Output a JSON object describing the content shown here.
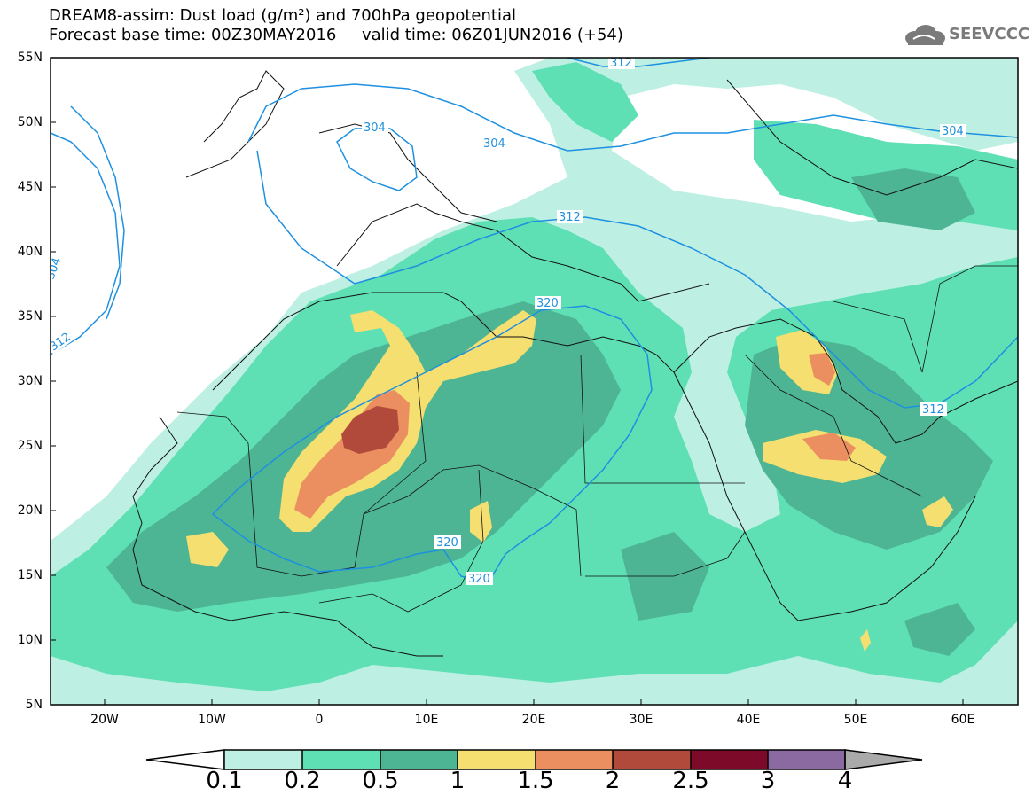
{
  "header": {
    "line1": "DREAM8-assim: Dust load (g/m²) and 700hPa geopotential",
    "line2": "Forecast base time: 00Z30MAY2016     valid time: 06Z01JUN2016 (+54)"
  },
  "logo": {
    "text": "SEEVCCC",
    "icon": "cloud-logo-icon"
  },
  "map": {
    "lat_labels": [
      "55N",
      "50N",
      "45N",
      "40N",
      "35N",
      "30N",
      "25N",
      "20N",
      "15N",
      "10N",
      "5N"
    ],
    "lon_labels": [
      "20W",
      "10W",
      "0",
      "10E",
      "20E",
      "30E",
      "40E",
      "50E",
      "60E"
    ],
    "contour_labels": [
      "312",
      "304",
      "304",
      "304",
      "312",
      "320",
      "312",
      "320",
      "320",
      "304",
      "312"
    ],
    "extent": {
      "lon": [
        -25,
        65
      ],
      "lat": [
        5,
        55
      ]
    }
  },
  "colorbar": {
    "labels": [
      "0.1",
      "0.2",
      "0.5",
      "1",
      "1.5",
      "2",
      "2.5",
      "3",
      "4"
    ],
    "colors": [
      "#bdf0e3",
      "#5ee0b4",
      "#4db593",
      "#f5df70",
      "#eb8f61",
      "#b24a3b",
      "#7e0a2a",
      "#8a6aa0"
    ],
    "under_color": "#ffffff",
    "over_color": "#aaaaaa"
  }
}
